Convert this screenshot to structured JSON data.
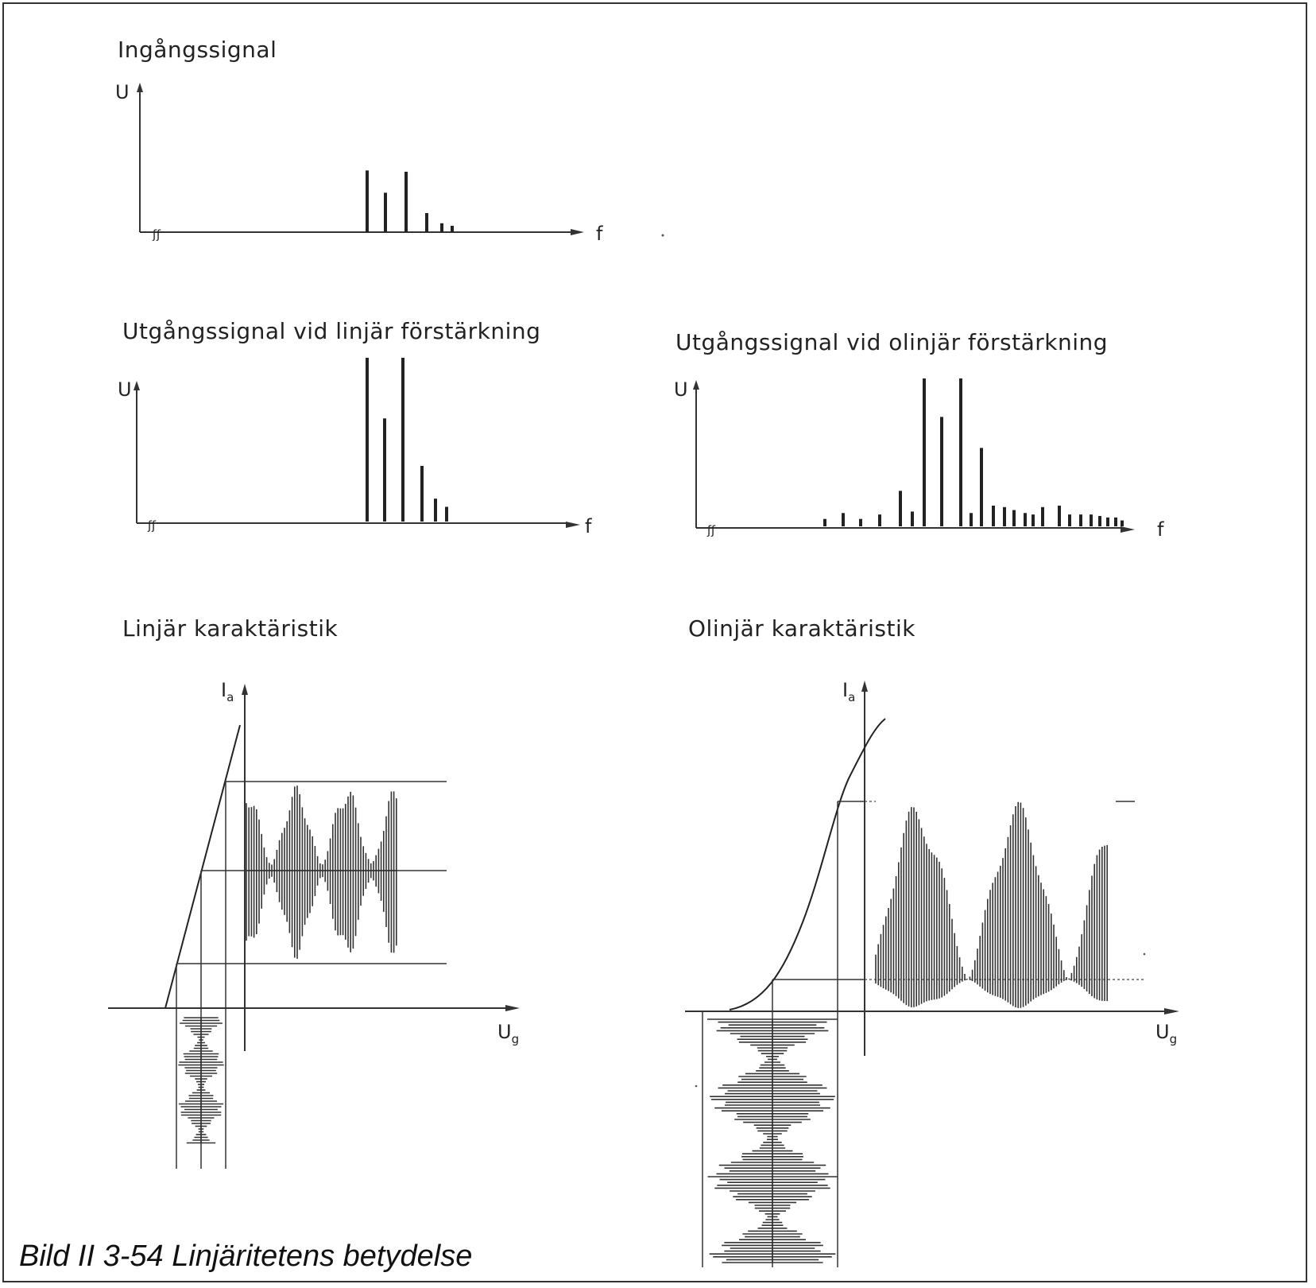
{
  "figure": {
    "caption": "Bild II 3-54 Linjäritetens betydelse"
  },
  "panels": {
    "input_spectrum": {
      "title": "Ingångssignal",
      "y_label": "U",
      "x_label": "f",
      "lines": [
        0.97,
        0.62,
        0.95,
        0.3,
        0.14,
        0.1
      ]
    },
    "linear_output": {
      "title": "Utgångssignal vid linjär förstärkning",
      "y_label": "U",
      "x_label": "f",
      "lines": [
        1.0,
        0.63,
        1.0,
        0.34,
        0.14,
        0.09
      ]
    },
    "nonlinear_output": {
      "title": "Utgångssignal vid olinjär förstärkning",
      "y_label": "U",
      "x_label": "f",
      "lines": [
        0.05,
        0.09,
        0.05,
        0.08,
        0.24,
        0.1,
        1.0,
        0.74,
        1.0,
        0.53,
        0.09,
        0.14,
        0.13,
        0.11,
        0.09,
        0.13,
        0.08,
        0.14,
        0.08,
        0.08,
        0.08,
        0.07,
        0.06,
        0.06,
        0.04
      ]
    },
    "linear_characteristic": {
      "title": "Linjär karaktäristik",
      "y_label": "I",
      "y_label_sub": "a",
      "x_label": "U",
      "x_label_sub": "g"
    },
    "nonlinear_characteristic": {
      "title": "Olinjär karaktäristik",
      "y_label": "I",
      "y_label_sub": "a",
      "x_label": "U",
      "x_label_sub": "g"
    }
  }
}
